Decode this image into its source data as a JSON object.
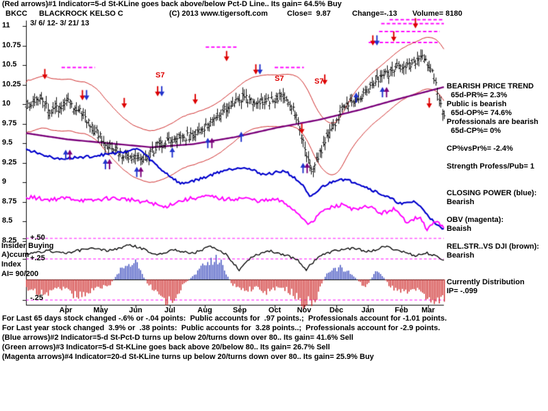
{
  "header": {
    "line1": "(Red arrows)#1 Indicator=5-d St-KLine goes back above/below Pct-D Line.. Its gain= 64.5% Buy",
    "symbol": "BKCC",
    "name": "BLACKROCK KELSO C",
    "copyright": "(C) 2013 www.tigersoft.com",
    "close": "Close=  9.87",
    "change": "Change=-.13",
    "volume": "Volume= 8180",
    "date_range": "3/ 6/ 12- 3/ 21/ 13"
  },
  "indicator_panel": {
    "plus50": "+.50",
    "label_insider": "Insider Buying",
    "label_accum": "A)ccum",
    "plus25": "+.25",
    "label_index": "Index",
    "label_ai": "AI= 90/200",
    "minus25": "-.25"
  },
  "right_panel": {
    "lines": [
      "BEARISH PRICE TREND",
      "  65d-PR%= 2.3%",
      "Public is bearish",
      "  65d-OP%= 74.6%",
      "Professionals are bearish",
      "  65d-CP%= 0%",
      "",
      "CP%vsPr%= -2.4%",
      "",
      "Strength Profess/Pub= 1",
      "",
      "",
      "CLOSING POWER (blue):",
      "Bearish",
      "",
      "OBV (magenta):",
      "Beaish",
      "",
      "REL.STR..VS DJI (brown):",
      "Bearish",
      "",
      "",
      "Currently Distribution",
      "IP= -.099"
    ]
  },
  "footer": {
    "lines": [
      "For Last 65 days stock changed -.6% or -.04 points:  Public accounts for  .97 points.;  Professionals account for -1.01 points.",
      "For Last year stock changed  3.9% or  .38 points:  Public accounts for  3.28 points..;  Professionals account for -2.9 points.",
      "(Blue arrows)#2 Indicator=5-d St-Pct-D turns up below 20/turns down over 80.. Its gain= 41.6% Sell",
      "(Green arrows)#3 Indicator=5-d St-KLine goes back above 20/below 80.. Its gain= 26.7% Sell",
      "(Magenta arrows)#4 Indicator=20-d St-KLine turns up below 20/turns down over 80.. Its gain= 25.9% Buy"
    ]
  },
  "chart_data": {
    "type": "ohlc",
    "symbol": "BKCC",
    "company": "BLACKROCK KELSO C",
    "close": 9.87,
    "change": -0.13,
    "volume": 8180,
    "date_range": "3/ 6/ 12- 3/ 21/ 13",
    "price_axis": {
      "min": 8.25,
      "max": 11,
      "tick_values": [
        11,
        10.75,
        10.5,
        10.25,
        10,
        9.75,
        9.5,
        9.25,
        9,
        8.75,
        8.5,
        8.25
      ],
      "tick_labels": [
        "11",
        "10.75",
        "10.5",
        "10.25",
        "10",
        "9.75",
        "9.5",
        "9.25",
        "9",
        "8.75",
        "8.5",
        "8.25"
      ]
    },
    "time_axis": {
      "labels": [
        "Apr",
        "May",
        "Jun",
        "Jul",
        "Aug",
        "Sep",
        "Oct",
        "Nov",
        "Dec",
        "Jan",
        "Feb",
        "Mar"
      ],
      "t": [
        0.095,
        0.179,
        0.262,
        0.344,
        0.428,
        0.512,
        0.595,
        0.666,
        0.743,
        0.818,
        0.899,
        0.962
      ]
    },
    "indicator_axis": {
      "gridlines": [
        0.5,
        0.25,
        -0.25
      ],
      "labels": [
        "+.50",
        "+.25",
        "-.25"
      ],
      "ai_value": "90/200"
    },
    "series": {
      "bar_count": 250,
      "band_offset": 0.33,
      "price_close_anchors": [
        [
          0,
          9.95
        ],
        [
          0.03,
          10.08
        ],
        [
          0.06,
          9.9
        ],
        [
          0.1,
          10.02
        ],
        [
          0.13,
          9.92
        ],
        [
          0.16,
          9.68
        ],
        [
          0.2,
          9.45
        ],
        [
          0.24,
          9.34
        ],
        [
          0.28,
          9.27
        ],
        [
          0.31,
          9.45
        ],
        [
          0.35,
          9.55
        ],
        [
          0.4,
          9.6
        ],
        [
          0.44,
          9.75
        ],
        [
          0.48,
          9.95
        ],
        [
          0.52,
          10.1
        ],
        [
          0.55,
          10.0
        ],
        [
          0.58,
          10.05
        ],
        [
          0.61,
          10.1
        ],
        [
          0.64,
          9.95
        ],
        [
          0.66,
          9.6
        ],
        [
          0.68,
          9.15
        ],
        [
          0.7,
          9.35
        ],
        [
          0.73,
          9.7
        ],
        [
          0.76,
          9.95
        ],
        [
          0.8,
          10.1
        ],
        [
          0.84,
          10.3
        ],
        [
          0.88,
          10.45
        ],
        [
          0.92,
          10.5
        ],
        [
          0.95,
          10.62
        ],
        [
          0.97,
          10.45
        ],
        [
          0.99,
          10.05
        ],
        [
          1,
          9.87
        ]
      ],
      "ma65_anchors": [
        [
          0,
          9.63
        ],
        [
          0.1,
          9.55
        ],
        [
          0.2,
          9.5
        ],
        [
          0.3,
          9.45
        ],
        [
          0.4,
          9.49
        ],
        [
          0.5,
          9.58
        ],
        [
          0.6,
          9.7
        ],
        [
          0.7,
          9.8
        ],
        [
          0.8,
          9.93
        ],
        [
          0.9,
          10.08
        ],
        [
          1,
          10.22
        ]
      ],
      "closing_power_anchors": [
        [
          0,
          9.42
        ],
        [
          0.08,
          9.3
        ],
        [
          0.15,
          9.33
        ],
        [
          0.22,
          9.38
        ],
        [
          0.27,
          9.43
        ],
        [
          0.32,
          9.18
        ],
        [
          0.37,
          8.98
        ],
        [
          0.42,
          9.05
        ],
        [
          0.47,
          9.15
        ],
        [
          0.52,
          9.2
        ],
        [
          0.57,
          9.1
        ],
        [
          0.62,
          9.15
        ],
        [
          0.66,
          8.98
        ],
        [
          0.68,
          8.8
        ],
        [
          0.71,
          8.95
        ],
        [
          0.75,
          9.05
        ],
        [
          0.79,
          9.0
        ],
        [
          0.83,
          8.9
        ],
        [
          0.87,
          8.8
        ],
        [
          0.9,
          8.72
        ],
        [
          0.93,
          8.76
        ],
        [
          0.96,
          8.6
        ],
        [
          0.98,
          8.46
        ],
        [
          1,
          8.4
        ]
      ],
      "obv_anchors": [
        [
          0,
          8.82
        ],
        [
          0.05,
          8.78
        ],
        [
          0.1,
          8.8
        ],
        [
          0.15,
          8.76
        ],
        [
          0.2,
          8.8
        ],
        [
          0.25,
          8.78
        ],
        [
          0.3,
          8.74
        ],
        [
          0.33,
          8.68
        ],
        [
          0.36,
          8.75
        ],
        [
          0.4,
          8.8
        ],
        [
          0.44,
          8.82
        ],
        [
          0.48,
          8.78
        ],
        [
          0.52,
          8.8
        ],
        [
          0.56,
          8.76
        ],
        [
          0.6,
          8.78
        ],
        [
          0.63,
          8.7
        ],
        [
          0.66,
          8.56
        ],
        [
          0.68,
          8.46
        ],
        [
          0.7,
          8.6
        ],
        [
          0.73,
          8.68
        ],
        [
          0.76,
          8.72
        ],
        [
          0.79,
          8.64
        ],
        [
          0.82,
          8.7
        ],
        [
          0.85,
          8.6
        ],
        [
          0.88,
          8.66
        ],
        [
          0.91,
          8.5
        ],
        [
          0.94,
          8.56
        ],
        [
          0.96,
          8.4
        ],
        [
          0.98,
          8.5
        ],
        [
          1,
          8.44
        ]
      ],
      "rel_str_anchors": [
        [
          0,
          0.3
        ],
        [
          0.05,
          0.35
        ],
        [
          0.1,
          0.32
        ],
        [
          0.15,
          0.38
        ],
        [
          0.2,
          0.35
        ],
        [
          0.25,
          0.42
        ],
        [
          0.28,
          0.37
        ],
        [
          0.31,
          0.3
        ],
        [
          0.35,
          0.36
        ],
        [
          0.4,
          0.32
        ],
        [
          0.44,
          0.4
        ],
        [
          0.48,
          0.3
        ],
        [
          0.51,
          0.12
        ],
        [
          0.54,
          0.28
        ],
        [
          0.58,
          0.35
        ],
        [
          0.62,
          0.3
        ],
        [
          0.65,
          0.24
        ],
        [
          0.67,
          0.12
        ],
        [
          0.7,
          0.28
        ],
        [
          0.74,
          0.35
        ],
        [
          0.78,
          0.38
        ],
        [
          0.82,
          0.34
        ],
        [
          0.86,
          0.4
        ],
        [
          0.9,
          0.34
        ],
        [
          0.93,
          0.29
        ],
        [
          0.96,
          0.32
        ],
        [
          1,
          0.24
        ]
      ],
      "accum_hist_anchors": [
        [
          0,
          -0.12
        ],
        [
          0.04,
          -0.18
        ],
        [
          0.08,
          -0.1
        ],
        [
          0.12,
          -0.2
        ],
        [
          0.16,
          -0.12
        ],
        [
          0.2,
          -0.06
        ],
        [
          0.235,
          0.18
        ],
        [
          0.26,
          0.22
        ],
        [
          0.29,
          -0.05
        ],
        [
          0.32,
          -0.2
        ],
        [
          0.345,
          -0.28
        ],
        [
          0.37,
          -0.1
        ],
        [
          0.4,
          0.05
        ],
        [
          0.43,
          0.2
        ],
        [
          0.46,
          0.26
        ],
        [
          0.49,
          -0.05
        ],
        [
          0.52,
          -0.14
        ],
        [
          0.55,
          -0.1
        ],
        [
          0.58,
          -0.16
        ],
        [
          0.61,
          -0.08
        ],
        [
          0.64,
          -0.18
        ],
        [
          0.665,
          -0.3
        ],
        [
          0.69,
          -0.26
        ],
        [
          0.72,
          0.1
        ],
        [
          0.75,
          0.15
        ],
        [
          0.78,
          0.06
        ],
        [
          0.81,
          -0.1
        ],
        [
          0.84,
          0.12
        ],
        [
          0.87,
          -0.08
        ],
        [
          0.9,
          -0.16
        ],
        [
          0.93,
          -0.12
        ],
        [
          0.96,
          -0.2
        ],
        [
          0.98,
          -0.26
        ],
        [
          1,
          -0.22
        ]
      ]
    },
    "signals": {
      "down_arrows": [
        {
          "t": 0.045,
          "price": 10.32
        },
        {
          "t": 0.135,
          "price": 10.05,
          "pair": true
        },
        {
          "t": 0.235,
          "price": 9.95
        },
        {
          "t": 0.315,
          "price": 10.1,
          "pair": true
        },
        {
          "t": 0.405,
          "price": 10.0
        },
        {
          "t": 0.48,
          "price": 10.55
        },
        {
          "t": 0.55,
          "price": 10.38,
          "pair": true
        },
        {
          "t": 0.66,
          "price": 9.62
        },
        {
          "t": 0.715,
          "price": 10.25
        },
        {
          "t": 0.83,
          "price": 10.75,
          "pair": true
        },
        {
          "t": 0.88,
          "price": 10.8
        },
        {
          "t": 0.932,
          "price": 10.97
        },
        {
          "t": 0.965,
          "price": 9.95
        }
      ],
      "up_arrows": [
        {
          "t": 0.095,
          "price": 9.42,
          "pair": true
        },
        {
          "t": 0.19,
          "price": 9.3,
          "pair": true
        },
        {
          "t": 0.265,
          "price": 9.2,
          "pair": true
        },
        {
          "t": 0.35,
          "price": 9.45
        },
        {
          "t": 0.435,
          "price": 9.57,
          "pair": true
        },
        {
          "t": 0.515,
          "price": 9.65
        },
        {
          "t": 0.663,
          "price": 9.25,
          "pair": true
        },
        {
          "t": 0.79,
          "price": 10.15
        },
        {
          "t": 0.853,
          "price": 10.22,
          "pair": true
        }
      ],
      "s7_labels": [
        {
          "t": 0.316,
          "price": 10.36,
          "text": "S7"
        },
        {
          "t": 0.602,
          "price": 10.32,
          "text": "S7"
        },
        {
          "t": 0.697,
          "price": 10.28,
          "text": "S7"
        }
      ],
      "resistance_segments": [
        {
          "t1": 0.085,
          "t2": 0.165,
          "price": 10.47
        },
        {
          "t1": 0.43,
          "t2": 0.505,
          "price": 10.73
        },
        {
          "t1": 0.595,
          "t2": 0.665,
          "price": 10.47
        },
        {
          "t1": 0.82,
          "t2": 0.985,
          "price": 10.79
        },
        {
          "t1": 0.845,
          "t2": 0.99,
          "price": 10.93
        },
        {
          "t1": 0.85,
          "t2": 1,
          "price": 11.03
        },
        {
          "t1": 0.87,
          "t2": 1,
          "price": 11.08
        }
      ]
    },
    "colors": {
      "price_bars": "#000000",
      "bands": "#cc2222",
      "ma65": "#7a007a",
      "closing_power": "#0000cc",
      "obv": "#ff00ff",
      "rel_str": "#000000",
      "hist_neg": "#cc2222",
      "hist_pos": "#3344bb",
      "resistance": "#ff00ff",
      "arrow_down": "#dd0000",
      "arrow_up_blue": "#2233cc",
      "arrow_up_purple": "#7a007a",
      "signal_text": "#dd0000"
    }
  }
}
